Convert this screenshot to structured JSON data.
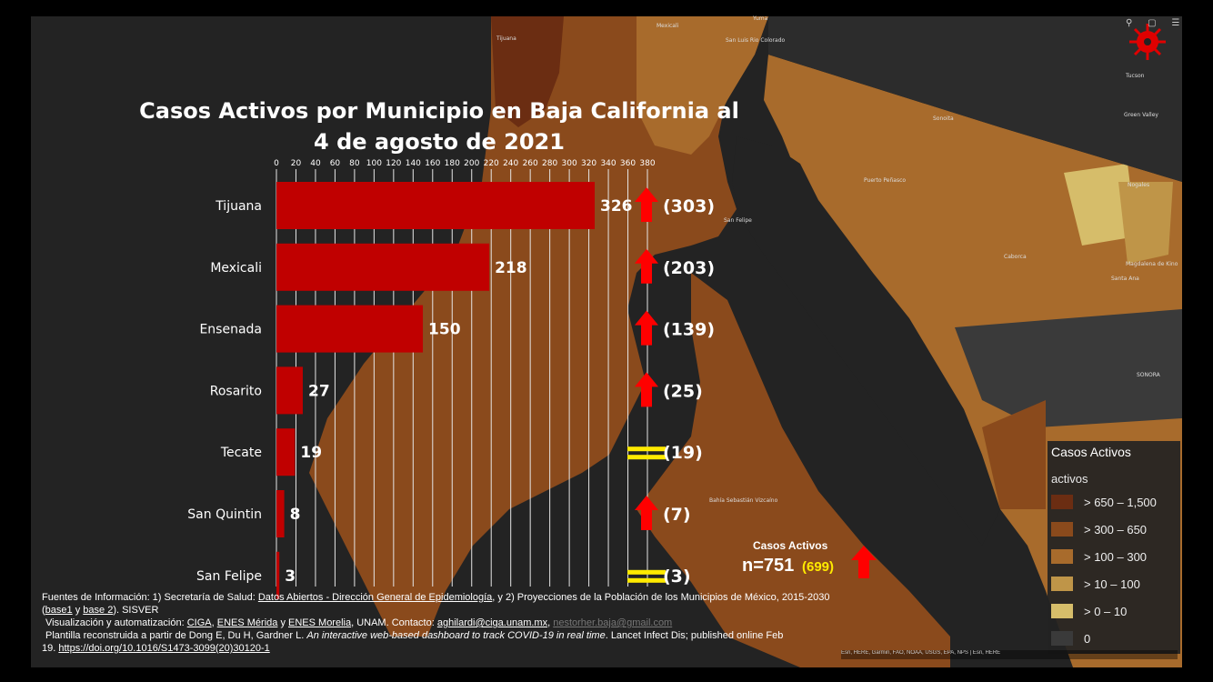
{
  "chart_data": {
    "type": "bar",
    "orientation": "horizontal",
    "title_lines": [
      "Casos Activos por Municipio en Baja California al",
      "4 de agosto de 2021"
    ],
    "categories": [
      "Tijuana",
      "Mexicali",
      "Ensenada",
      "Rosarito",
      "Tecate",
      "San Quintin",
      "San Felipe"
    ],
    "values": [
      326,
      218,
      150,
      27,
      19,
      8,
      3
    ],
    "previous_values": [
      "(303)",
      "(203)",
      "(139)",
      "(25)",
      "(19)",
      "(7)",
      "(3)"
    ],
    "trend": [
      "up",
      "up",
      "up",
      "up",
      "equal",
      "up",
      "equal"
    ],
    "xlim": [
      0,
      380
    ],
    "ticks": [
      0,
      20,
      40,
      60,
      80,
      100,
      120,
      140,
      160,
      180,
      200,
      220,
      240,
      260,
      280,
      300,
      320,
      340,
      360,
      380
    ],
    "grid": true,
    "axis_position": "top",
    "bar_color": "#c00000",
    "up_arrow_color": "#ff0000",
    "equal_color": "#ffea00"
  },
  "total": {
    "label": "Casos Activos",
    "value_text": "n=751",
    "previous_text": "(699)",
    "trend": "up"
  },
  "map": {
    "labels": [
      "Mexicali",
      "Tijuana",
      "Yuma",
      "San Luis Rio Colorado",
      "Tucson",
      "Sonoita",
      "Green Valley",
      "Nogales",
      "Puerto Peñasco",
      "San Felipe",
      "Caborca",
      "Magdalena de Kino",
      "Santa Ana",
      "SONORA",
      "Bahía Sebastián Vizcaíno"
    ],
    "colors": {
      "level_650_1500": "#6b2d12",
      "level_300_650": "#8a4a1c",
      "level_100_300": "#a86b2c",
      "level_10_100": "#bf9548",
      "level_0_10": "#d6bd6a",
      "level_0": "#3a3a3a"
    }
  },
  "legend": {
    "title": "Casos Activos",
    "subtitle": "activos",
    "items": [
      {
        "label": "> 650 – 1,500",
        "color": "#6b2d12"
      },
      {
        "label": "> 300 – 650",
        "color": "#8a4a1c"
      },
      {
        "label": "> 100 – 300",
        "color": "#a86b2c"
      },
      {
        "label": "> 10 – 100",
        "color": "#bf9548"
      },
      {
        "label": "> 0 – 10",
        "color": "#d6bd6a"
      },
      {
        "label": "0",
        "color": "#3a3a3a"
      }
    ]
  },
  "footer": {
    "line1_a": "Fuentes de Información: 1) Secretaría de Salud: ",
    "link_datos": "Datos Abiertos - Dirección General de Epidemiología",
    "line1_b": ", y 2) Proyecciones de la Población de los Municipios de México, 2015-2030",
    "line2_a": "(",
    "link_base1": "base1",
    "line2_b": " y ",
    "link_base2": "base 2",
    "line2_c": "). SISVER",
    "line3_a": "Visualización y automatización: ",
    "link_ciga": "CIGA",
    "line3_b": ", ",
    "link_merida": "ENES Mérida",
    "line3_c": " y ",
    "link_morelia": "ENES Morelia",
    "line3_d": ", UNAM. Contacto: ",
    "link_email1": "aghilardi@ciga.unam.mx",
    "line3_e": ", ",
    "link_email2": "nestorher.baja@gmail.com",
    "line4_a": "Plantilla reconstruida a partir de Dong E, Du H, Gardner L. ",
    "line4_italic": "An interactive web-based dashboard to track COVID-19 in real time",
    "line4_b": ". Lancet Infect Dis; published online Feb",
    "line5_a": "19. ",
    "link_doi": "https://doi.org/10.1016/S1473-3099(20)30120-1"
  },
  "attribution": "Esri, HERE, Garmin, FAO, NOAA, USGS, EPA, NPS | Esri, HERE"
}
